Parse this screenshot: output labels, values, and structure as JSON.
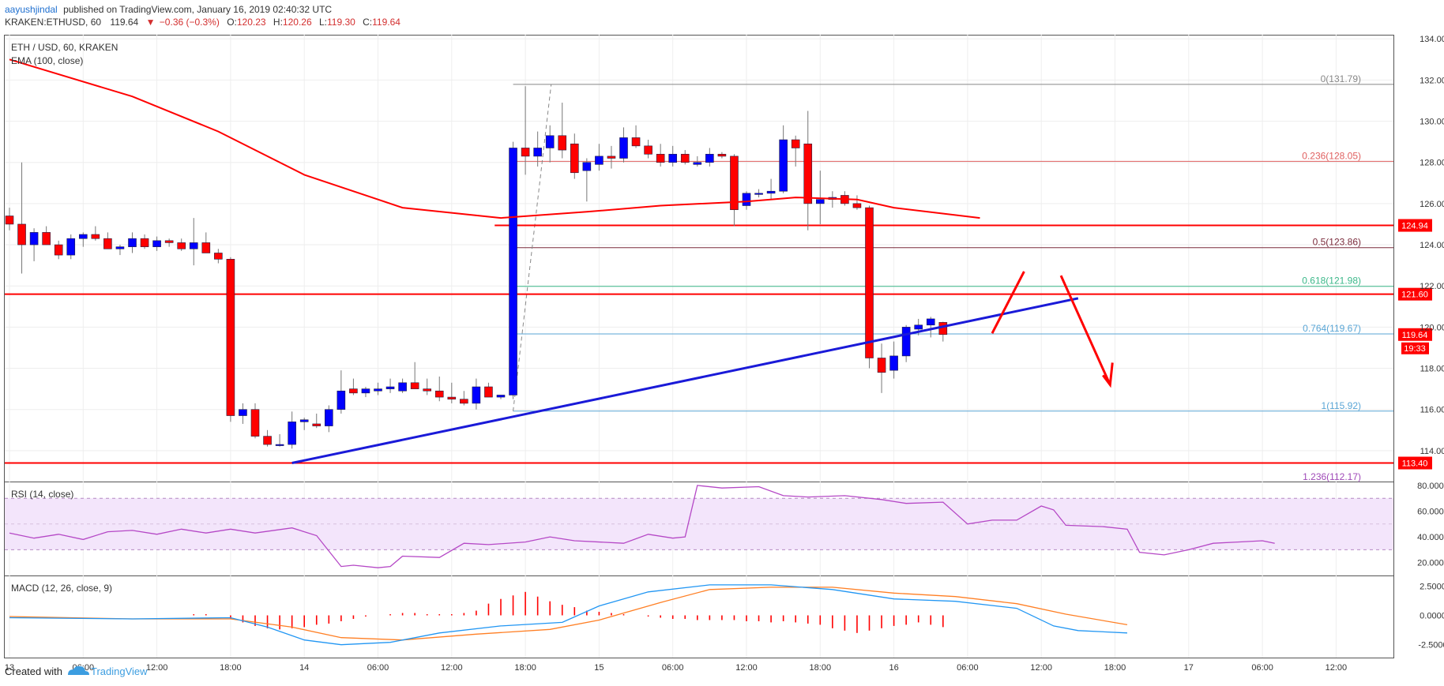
{
  "header": {
    "author": "aayushjindal",
    "published": "published on TradingView.com, January 16, 2019 02:40:32 UTC",
    "symbol": "KRAKEN:ETHUSD",
    "interval": "60",
    "last": "119.64",
    "change": "−0.36 (−0.3%)",
    "o_label": "O:",
    "o": "120.23",
    "h_label": "H:",
    "h": "120.26",
    "l_label": "L:",
    "l": "119.30",
    "c_label": "C:",
    "c": "119.64"
  },
  "footer": {
    "created_with": "Created with",
    "brand": "TradingView"
  },
  "colors": {
    "up": "#0000ff",
    "down": "#ff0000",
    "ema": "#ff0000",
    "trendline": "#1a1ad8",
    "rsi": "#b548c6",
    "rsi_band": "#f3e5fb",
    "macd": "#2196f3",
    "signal": "#ff7f24",
    "fib_gray": "#888888",
    "fib_red": "#e06060",
    "fib_maroon": "#7a2b3b",
    "fib_green": "#3cb88a",
    "fib_lightblue": "#5aa6d6",
    "fib_purple": "#a04ab8"
  },
  "chart_data": {
    "type": "candlestick",
    "symbol": "ETH / USD, 60, KRAKEN",
    "ema_label": "EMA (100, close)",
    "price_ylim": [
      112.5,
      134.2
    ],
    "price_ticks": [
      "134.00",
      "132.00",
      "130.00",
      "128.00",
      "126.00",
      "124.00",
      "122.00",
      "120.00",
      "118.00",
      "116.00",
      "114.00"
    ],
    "time_ticks": [
      "13",
      "06:00",
      "12:00",
      "18:00",
      "14",
      "06:00",
      "12:00",
      "18:00",
      "15",
      "06:00",
      "12:00",
      "18:00",
      "16",
      "06:00",
      "12:00",
      "18:00",
      "17",
      "06:00",
      "12:00"
    ],
    "candles": [
      {
        "o": 125.4,
        "h": 125.8,
        "l": 124.7,
        "c": 125.0
      },
      {
        "o": 125.0,
        "h": 128.0,
        "l": 122.6,
        "c": 124.0
      },
      {
        "o": 124.0,
        "h": 124.8,
        "l": 123.2,
        "c": 124.6
      },
      {
        "o": 124.6,
        "h": 124.9,
        "l": 124.0,
        "c": 124.0
      },
      {
        "o": 124.0,
        "h": 124.2,
        "l": 123.3,
        "c": 123.5
      },
      {
        "o": 123.5,
        "h": 124.5,
        "l": 123.3,
        "c": 124.3
      },
      {
        "o": 124.3,
        "h": 124.6,
        "l": 123.9,
        "c": 124.5
      },
      {
        "o": 124.5,
        "h": 124.9,
        "l": 124.2,
        "c": 124.3
      },
      {
        "o": 124.3,
        "h": 124.6,
        "l": 123.8,
        "c": 123.8
      },
      {
        "o": 123.8,
        "h": 124.0,
        "l": 123.5,
        "c": 123.9
      },
      {
        "o": 123.9,
        "h": 124.6,
        "l": 123.6,
        "c": 124.3
      },
      {
        "o": 124.3,
        "h": 124.5,
        "l": 123.8,
        "c": 123.9
      },
      {
        "o": 123.9,
        "h": 124.4,
        "l": 123.7,
        "c": 124.2
      },
      {
        "o": 124.2,
        "h": 124.3,
        "l": 123.9,
        "c": 124.1
      },
      {
        "o": 124.1,
        "h": 124.3,
        "l": 123.7,
        "c": 123.8
      },
      {
        "o": 123.8,
        "h": 125.3,
        "l": 123.0,
        "c": 124.1
      },
      {
        "o": 124.1,
        "h": 124.6,
        "l": 123.6,
        "c": 123.6
      },
      {
        "o": 123.6,
        "h": 123.8,
        "l": 123.1,
        "c": 123.3
      },
      {
        "o": 123.3,
        "h": 123.4,
        "l": 115.4,
        "c": 115.7
      },
      {
        "o": 115.7,
        "h": 116.3,
        "l": 115.3,
        "c": 116.0
      },
      {
        "o": 116.0,
        "h": 116.3,
        "l": 114.6,
        "c": 114.7
      },
      {
        "o": 114.7,
        "h": 115.0,
        "l": 114.2,
        "c": 114.3
      },
      {
        "o": 114.3,
        "h": 114.8,
        "l": 114.2,
        "c": 114.3
      },
      {
        "o": 114.3,
        "h": 115.9,
        "l": 114.1,
        "c": 115.4
      },
      {
        "o": 115.4,
        "h": 115.6,
        "l": 115.0,
        "c": 115.5
      },
      {
        "o": 115.3,
        "h": 115.8,
        "l": 115.1,
        "c": 115.2
      },
      {
        "o": 115.2,
        "h": 116.2,
        "l": 114.9,
        "c": 116.0
      },
      {
        "o": 116.0,
        "h": 117.9,
        "l": 115.8,
        "c": 116.9
      },
      {
        "o": 117.0,
        "h": 117.5,
        "l": 116.7,
        "c": 116.8
      },
      {
        "o": 116.8,
        "h": 117.1,
        "l": 116.6,
        "c": 117.0
      },
      {
        "o": 116.9,
        "h": 117.3,
        "l": 116.7,
        "c": 117.0
      },
      {
        "o": 117.0,
        "h": 117.5,
        "l": 116.8,
        "c": 117.1
      },
      {
        "o": 116.9,
        "h": 117.5,
        "l": 116.8,
        "c": 117.3
      },
      {
        "o": 117.3,
        "h": 118.3,
        "l": 117.0,
        "c": 117.0
      },
      {
        "o": 117.0,
        "h": 117.5,
        "l": 116.7,
        "c": 116.9
      },
      {
        "o": 116.9,
        "h": 117.6,
        "l": 116.4,
        "c": 116.6
      },
      {
        "o": 116.6,
        "h": 117.3,
        "l": 116.3,
        "c": 116.5
      },
      {
        "o": 116.5,
        "h": 116.9,
        "l": 116.2,
        "c": 116.3
      },
      {
        "o": 116.3,
        "h": 117.5,
        "l": 116.0,
        "c": 117.1
      },
      {
        "o": 117.1,
        "h": 117.3,
        "l": 116.6,
        "c": 116.6
      },
      {
        "o": 116.6,
        "h": 116.7,
        "l": 116.5,
        "c": 116.7
      },
      {
        "o": 116.7,
        "h": 129.0,
        "l": 116.5,
        "c": 128.7
      },
      {
        "o": 128.7,
        "h": 131.7,
        "l": 127.4,
        "c": 128.3
      },
      {
        "o": 128.3,
        "h": 129.5,
        "l": 127.8,
        "c": 128.7
      },
      {
        "o": 128.7,
        "h": 129.8,
        "l": 128.0,
        "c": 129.3
      },
      {
        "o": 129.3,
        "h": 130.9,
        "l": 128.2,
        "c": 128.6
      },
      {
        "o": 128.9,
        "h": 129.4,
        "l": 127.2,
        "c": 127.5
      },
      {
        "o": 127.6,
        "h": 128.2,
        "l": 126.1,
        "c": 128.0
      },
      {
        "o": 127.9,
        "h": 128.9,
        "l": 127.6,
        "c": 128.3
      },
      {
        "o": 128.3,
        "h": 128.8,
        "l": 127.7,
        "c": 128.2
      },
      {
        "o": 128.2,
        "h": 129.7,
        "l": 128.0,
        "c": 129.2
      },
      {
        "o": 129.2,
        "h": 129.8,
        "l": 128.7,
        "c": 128.8
      },
      {
        "o": 128.8,
        "h": 129.1,
        "l": 128.2,
        "c": 128.4
      },
      {
        "o": 128.4,
        "h": 128.9,
        "l": 127.8,
        "c": 128.0
      },
      {
        "o": 128.0,
        "h": 128.8,
        "l": 127.8,
        "c": 128.4
      },
      {
        "o": 128.4,
        "h": 128.6,
        "l": 127.9,
        "c": 128.0
      },
      {
        "o": 127.9,
        "h": 128.3,
        "l": 127.8,
        "c": 128.0
      },
      {
        "o": 128.0,
        "h": 128.7,
        "l": 127.8,
        "c": 128.4
      },
      {
        "o": 128.4,
        "h": 128.5,
        "l": 128.2,
        "c": 128.3
      },
      {
        "o": 128.3,
        "h": 128.4,
        "l": 124.9,
        "c": 125.7
      },
      {
        "o": 125.9,
        "h": 126.6,
        "l": 125.7,
        "c": 126.5
      },
      {
        "o": 126.5,
        "h": 126.7,
        "l": 126.3,
        "c": 126.5
      },
      {
        "o": 126.5,
        "h": 127.2,
        "l": 126.2,
        "c": 126.6
      },
      {
        "o": 126.6,
        "h": 129.8,
        "l": 126.5,
        "c": 129.1
      },
      {
        "o": 129.1,
        "h": 129.3,
        "l": 127.8,
        "c": 128.7
      },
      {
        "o": 128.9,
        "h": 130.5,
        "l": 124.7,
        "c": 126.0
      },
      {
        "o": 126.0,
        "h": 127.6,
        "l": 125.0,
        "c": 126.2
      },
      {
        "o": 126.2,
        "h": 126.6,
        "l": 125.8,
        "c": 126.3
      },
      {
        "o": 126.4,
        "h": 126.6,
        "l": 125.9,
        "c": 126.0
      },
      {
        "o": 126.0,
        "h": 126.4,
        "l": 125.7,
        "c": 125.8
      },
      {
        "o": 125.8,
        "h": 125.9,
        "l": 118.0,
        "c": 118.5
      },
      {
        "o": 118.5,
        "h": 119.2,
        "l": 116.8,
        "c": 117.8
      },
      {
        "o": 117.9,
        "h": 119.3,
        "l": 117.5,
        "c": 118.6
      },
      {
        "o": 118.6,
        "h": 120.1,
        "l": 118.3,
        "c": 120.0
      },
      {
        "o": 119.9,
        "h": 120.4,
        "l": 119.6,
        "c": 120.1
      },
      {
        "o": 120.1,
        "h": 120.5,
        "l": 119.5,
        "c": 120.4
      },
      {
        "o": 120.23,
        "h": 120.26,
        "l": 119.3,
        "c": 119.64
      }
    ],
    "ema_100": [
      {
        "i": 0,
        "v": 133.0
      },
      {
        "i": 10,
        "v": 131.2
      },
      {
        "i": 17,
        "v": 129.5
      },
      {
        "i": 24,
        "v": 127.4
      },
      {
        "i": 32,
        "v": 125.8
      },
      {
        "i": 40,
        "v": 125.3
      },
      {
        "i": 47,
        "v": 125.6
      },
      {
        "i": 53,
        "v": 125.9
      },
      {
        "i": 60,
        "v": 126.1
      },
      {
        "i": 64,
        "v": 126.3
      },
      {
        "i": 69,
        "v": 126.2
      },
      {
        "i": 72,
        "v": 125.8
      },
      {
        "i": 79,
        "v": 125.3
      }
    ],
    "horizontal_levels": [
      {
        "label": "124.94",
        "value": 124.94
      },
      {
        "label": "121.60",
        "value": 121.6
      },
      {
        "label": "113.40",
        "value": 113.4
      }
    ],
    "fibonacci": [
      {
        "ratio": "0",
        "price": "131.79",
        "value": 131.79
      },
      {
        "ratio": "0.236",
        "price": "128.05",
        "value": 128.05
      },
      {
        "ratio": "0.5",
        "price": "123.86",
        "value": 123.86
      },
      {
        "ratio": "0.618",
        "price": "121.98",
        "value": 121.98
      },
      {
        "ratio": "0.764",
        "price": "119.67",
        "value": 119.67
      },
      {
        "ratio": "1",
        "price": "115.92",
        "value": 115.92
      },
      {
        "ratio": "1.236",
        "price": "112.17",
        "value": 112.17
      }
    ],
    "trendline": {
      "from": {
        "i": 23,
        "v": 113.4
      },
      "to": {
        "i": 87,
        "v": 121.4
      }
    },
    "forecast_arrows": [
      {
        "from": {
          "i": 80,
          "v": 119.7
        },
        "to": {
          "i": 82.6,
          "v": 122.7
        }
      },
      {
        "from": {
          "i": 85.6,
          "v": 122.5
        },
        "to": {
          "i": 89.6,
          "v": 117.2
        }
      }
    ],
    "price_label": "119.64",
    "countdown_label": "19:33",
    "rsi": {
      "label": "RSI (14, close)",
      "ylim": [
        10,
        83
      ],
      "ticks": [
        "80.0000",
        "60.0000",
        "40.0000",
        "20.0000"
      ],
      "bands": [
        30,
        70
      ],
      "points": [
        {
          "i": 0,
          "v": 43
        },
        {
          "i": 2,
          "v": 39
        },
        {
          "i": 4,
          "v": 42
        },
        {
          "i": 6,
          "v": 38
        },
        {
          "i": 8,
          "v": 44
        },
        {
          "i": 10,
          "v": 45
        },
        {
          "i": 12,
          "v": 42
        },
        {
          "i": 14,
          "v": 46
        },
        {
          "i": 16,
          "v": 43
        },
        {
          "i": 18,
          "v": 46
        },
        {
          "i": 20,
          "v": 43
        },
        {
          "i": 23,
          "v": 47
        },
        {
          "i": 25,
          "v": 41
        },
        {
          "i": 27,
          "v": 17
        },
        {
          "i": 28,
          "v": 18
        },
        {
          "i": 30,
          "v": 16
        },
        {
          "i": 31,
          "v": 17
        },
        {
          "i": 32,
          "v": 25
        },
        {
          "i": 35,
          "v": 24
        },
        {
          "i": 37,
          "v": 35
        },
        {
          "i": 39,
          "v": 34
        },
        {
          "i": 42,
          "v": 36
        },
        {
          "i": 44,
          "v": 40
        },
        {
          "i": 46,
          "v": 37
        },
        {
          "i": 50,
          "v": 35
        },
        {
          "i": 52,
          "v": 42
        },
        {
          "i": 54,
          "v": 39
        },
        {
          "i": 55,
          "v": 40
        },
        {
          "i": 56,
          "v": 80
        },
        {
          "i": 58,
          "v": 78
        },
        {
          "i": 61,
          "v": 79
        },
        {
          "i": 63,
          "v": 72
        },
        {
          "i": 65,
          "v": 71
        },
        {
          "i": 68,
          "v": 72
        },
        {
          "i": 71,
          "v": 69
        },
        {
          "i": 73,
          "v": 66
        },
        {
          "i": 76,
          "v": 67
        },
        {
          "i": 78,
          "v": 50
        },
        {
          "i": 80,
          "v": 53
        },
        {
          "i": 82,
          "v": 53
        },
        {
          "i": 84,
          "v": 64
        },
        {
          "i": 85,
          "v": 61
        },
        {
          "i": 86,
          "v": 49
        },
        {
          "i": 89,
          "v": 48
        },
        {
          "i": 91,
          "v": 46
        },
        {
          "i": 92,
          "v": 28
        },
        {
          "i": 94,
          "v": 26
        },
        {
          "i": 96,
          "v": 30
        },
        {
          "i": 98,
          "v": 35
        },
        {
          "i": 100,
          "v": 36
        },
        {
          "i": 102,
          "v": 37
        },
        {
          "i": 103,
          "v": 35
        }
      ]
    },
    "macd": {
      "label": "MACD (12, 26, close, 9)",
      "ylim": [
        -3.6,
        3.4
      ],
      "ticks": [
        "2.5000",
        "0.0000",
        "-2.5000"
      ],
      "macd_line": [
        {
          "i": 0,
          "v": -0.2
        },
        {
          "i": 10,
          "v": -0.3
        },
        {
          "i": 18,
          "v": -0.2
        },
        {
          "i": 21,
          "v": -1.0
        },
        {
          "i": 24,
          "v": -2.1
        },
        {
          "i": 27,
          "v": -2.5
        },
        {
          "i": 31,
          "v": -2.3
        },
        {
          "i": 35,
          "v": -1.5
        },
        {
          "i": 40,
          "v": -0.9
        },
        {
          "i": 45,
          "v": -0.6
        },
        {
          "i": 48,
          "v": 0.8
        },
        {
          "i": 52,
          "v": 2.0
        },
        {
          "i": 57,
          "v": 2.6
        },
        {
          "i": 62,
          "v": 2.6
        },
        {
          "i": 67,
          "v": 2.2
        },
        {
          "i": 72,
          "v": 1.4
        },
        {
          "i": 77,
          "v": 1.2
        },
        {
          "i": 82,
          "v": 0.6
        },
        {
          "i": 85,
          "v": -0.9
        },
        {
          "i": 87,
          "v": -1.3
        },
        {
          "i": 91,
          "v": -1.5
        }
      ],
      "signal_line": [
        {
          "i": 0,
          "v": -0.1
        },
        {
          "i": 10,
          "v": -0.3
        },
        {
          "i": 18,
          "v": -0.3
        },
        {
          "i": 23,
          "v": -1.0
        },
        {
          "i": 27,
          "v": -1.9
        },
        {
          "i": 32,
          "v": -2.1
        },
        {
          "i": 38,
          "v": -1.6
        },
        {
          "i": 44,
          "v": -1.2
        },
        {
          "i": 48,
          "v": -0.4
        },
        {
          "i": 53,
          "v": 1.1
        },
        {
          "i": 57,
          "v": 2.2
        },
        {
          "i": 62,
          "v": 2.4
        },
        {
          "i": 67,
          "v": 2.4
        },
        {
          "i": 72,
          "v": 1.9
        },
        {
          "i": 77,
          "v": 1.6
        },
        {
          "i": 82,
          "v": 1.0
        },
        {
          "i": 86,
          "v": 0.1
        },
        {
          "i": 91,
          "v": -0.8
        }
      ],
      "histogram": [
        0,
        0,
        0,
        0,
        0,
        0,
        0,
        0,
        0,
        0,
        0,
        0,
        0,
        0,
        0,
        0.1,
        0.1,
        0,
        -0.3,
        -0.6,
        -0.9,
        -1.1,
        -1.2,
        -1.1,
        -1.0,
        -0.8,
        -0.7,
        -0.5,
        -0.3,
        -0.1,
        0,
        0.1,
        0.2,
        0.2,
        0.1,
        0.1,
        0.1,
        0.2,
        0.4,
        1.0,
        1.4,
        1.7,
        2.0,
        1.6,
        1.2,
        0.9,
        0.7,
        0.4,
        0.3,
        0.2,
        0.1,
        0,
        -0.1,
        -0.2,
        -0.3,
        -0.3,
        -0.4,
        -0.4,
        -0.4,
        -0.4,
        -0.5,
        -0.5,
        -0.6,
        -0.5,
        -0.6,
        -0.7,
        -0.8,
        -1.1,
        -1.3,
        -1.5,
        -1.3,
        -1.1,
        -0.9,
        -0.8,
        -0.6,
        -0.8,
        -1.0
      ]
    }
  }
}
